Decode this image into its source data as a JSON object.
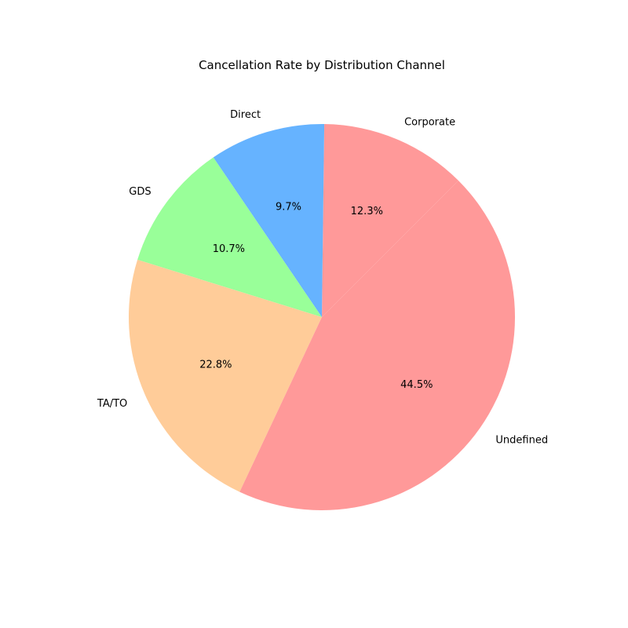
{
  "chart_data": {
    "type": "pie",
    "title": "Cancellation Rate by Distribution Channel",
    "slices": [
      {
        "label": "Corporate",
        "value": 12.3,
        "pct_label": "12.3%",
        "color": "#ff9999"
      },
      {
        "label": "Direct",
        "value": 9.7,
        "pct_label": "9.7%",
        "color": "#66b3ff"
      },
      {
        "label": "GDS",
        "value": 10.7,
        "pct_label": "10.7%",
        "color": "#99ff99"
      },
      {
        "label": "TA/TO",
        "value": 22.8,
        "pct_label": "22.8%",
        "color": "#ffcc99"
      },
      {
        "label": "Undefined",
        "value": 44.5,
        "pct_label": "44.5%",
        "color": "#ff9999"
      }
    ]
  }
}
